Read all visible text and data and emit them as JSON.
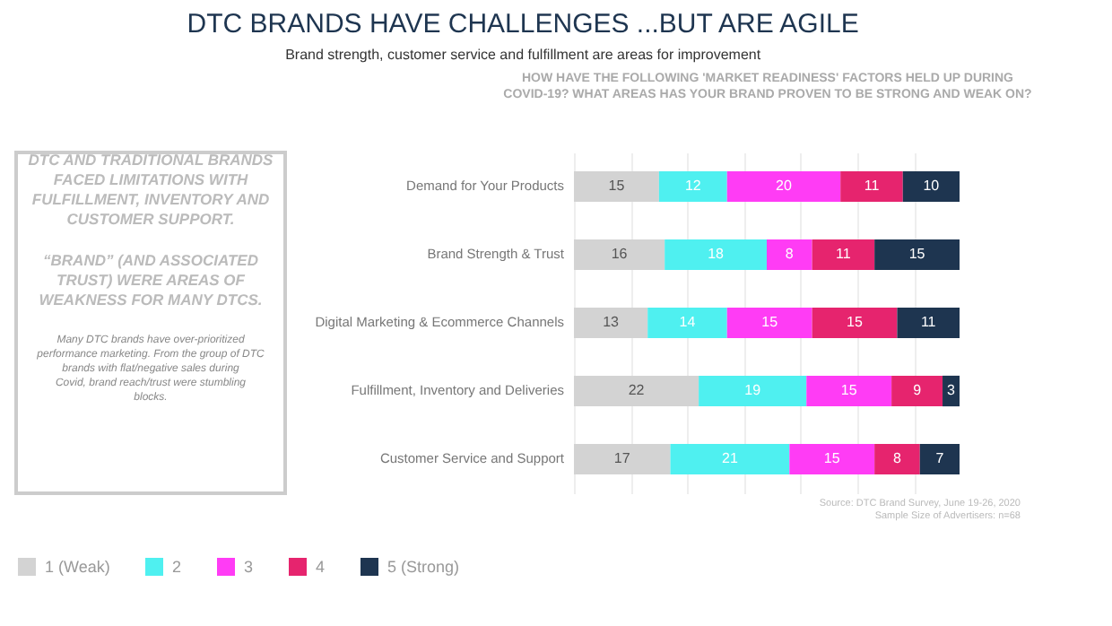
{
  "chart_data": {
    "type": "bar",
    "orientation": "horizontal",
    "stacked": true,
    "relative": false,
    "title": "DTC BRANDS HAVE CHALLENGES ...BUT ARE AGILE",
    "subtitle": "Brand strength, customer service and fulfillment are areas for improvement",
    "xlabel": "HOW HAVE THE FOLLOWING 'MARKET READINESS' FACTORS HELD UP DURING COVID-19? WHAT AREAS HAS YOUR BRAND PROVEN TO BE STRONG AND WEAK ON?",
    "categories": [
      "Demand for Your Products",
      "Brand Strength & Trust",
      "Digital Marketing & Ecommerce Channels",
      "Fulfillment, Inventory and Deliveries",
      "Customer Service and Support"
    ],
    "series": [
      {
        "name": "1 (Weak)",
        "color": "#d3d3d3",
        "values": [
          15,
          16,
          13,
          22,
          17
        ]
      },
      {
        "name": "2",
        "color": "#4ff0f0",
        "values": [
          12,
          18,
          14,
          19,
          21
        ]
      },
      {
        "name": "3",
        "color": "#ff3cf5",
        "values": [
          20,
          8,
          15,
          15,
          15
        ]
      },
      {
        "name": "4",
        "color": "#e6246e",
        "values": [
          11,
          11,
          15,
          9,
          8
        ]
      },
      {
        "name": "5 (Strong)",
        "color": "#1e3550",
        "values": [
          10,
          15,
          11,
          3,
          7
        ]
      }
    ],
    "data_labels": true,
    "legend": "bottom",
    "annotations": [
      "DTC AND TRADITIONAL BRANDS FACED LIMITATIONS WITH FULFILLMENT, INVENTORY AND CUSTOMER SUPPORT.",
      "“BRAND” (AND ASSOCIATED TRUST) WERE AREAS OF WEAKNESS FOR MANY DTCS.",
      "Many DTC brands have over-prioritized performance marketing. From the group of DTC brands with flat/negative sales during Covid, brand reach/trust were stumbling blocks.",
      "Source: DTC Brand Survey, June 19-26, 2020",
      "Sample Size of Advertisers: n=68"
    ]
  }
}
